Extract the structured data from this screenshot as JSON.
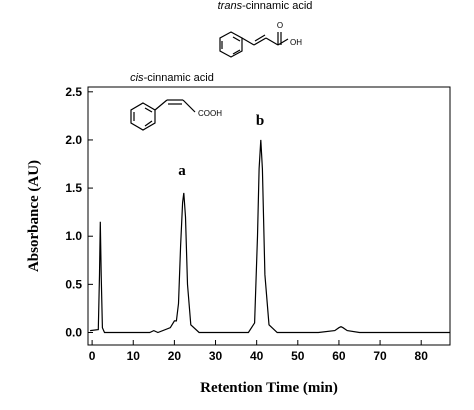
{
  "chart_data": {
    "type": "line",
    "x_label": "Retention Time (min)",
    "y_label": "Absorbance (AU)",
    "x": [
      -0.5,
      1.5,
      1.8,
      2.0,
      2.2,
      2.5,
      3,
      4,
      10,
      14,
      15,
      16,
      19,
      20,
      20.5,
      21,
      21.5,
      22,
      22.3,
      22.7,
      23.2,
      24,
      26,
      30,
      38,
      39.5,
      40.2,
      40.6,
      41,
      41.4,
      42,
      43,
      45,
      55,
      59,
      60,
      60.5,
      61,
      62,
      65,
      87
    ],
    "series": [
      {
        "color": "#000000",
        "values": [
          0.02,
          0.03,
          0.6,
          1.15,
          0.6,
          0.05,
          0,
          0,
          0,
          0,
          0.02,
          0,
          0.05,
          0.12,
          0.12,
          0.3,
          0.9,
          1.35,
          1.45,
          1.2,
          0.5,
          0.08,
          0,
          0,
          0,
          0.1,
          1.0,
          1.7,
          2.0,
          1.7,
          0.6,
          0.08,
          0,
          0,
          0.02,
          0.05,
          0.06,
          0.05,
          0.02,
          0,
          0
        ]
      }
    ],
    "xlim": [
      -1,
      87
    ],
    "xticks": [
      0,
      10,
      20,
      30,
      40,
      50,
      60,
      70,
      80
    ],
    "ylim": [
      -0.13,
      2.55
    ],
    "yticks": [
      {
        "value": 0,
        "label": "0.0"
      },
      0.5,
      {
        "value": 1,
        "label": "1.0"
      },
      1.5,
      {
        "value": 2,
        "label": "2.0"
      },
      2.5
    ],
    "annotations": [
      "a",
      "b"
    ],
    "structures": [
      {
        "name_italic": "trans",
        "name_rest": "-cinnamic acid",
        "groups": [
          "O",
          "OH"
        ]
      },
      {
        "name_italic": "cis",
        "name_rest": "-cinnamic acid",
        "groups": [
          "COOH"
        ]
      }
    ]
  }
}
